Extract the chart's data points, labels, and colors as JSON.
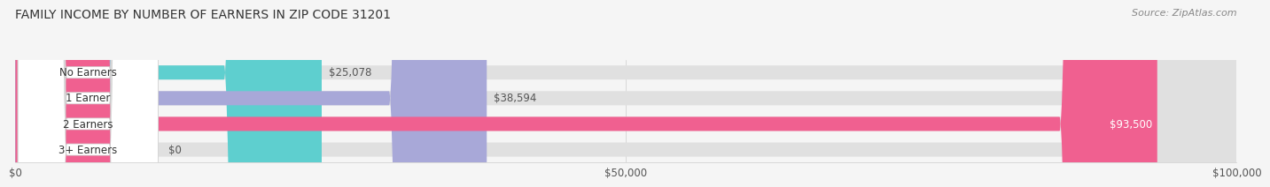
{
  "title": "FAMILY INCOME BY NUMBER OF EARNERS IN ZIP CODE 31201",
  "source": "Source: ZipAtlas.com",
  "categories": [
    "No Earners",
    "1 Earner",
    "2 Earners",
    "3+ Earners"
  ],
  "values": [
    25078,
    38594,
    93500,
    0
  ],
  "bar_colors": [
    "#5ecfcf",
    "#a8a8d8",
    "#f06090",
    "#f5c898"
  ],
  "label_texts": [
    "$25,078",
    "$38,594",
    "$93,500",
    "$0"
  ],
  "xmax": 100000,
  "xticks": [
    0,
    50000,
    100000
  ],
  "xticklabels": [
    "$0",
    "$50,000",
    "$100,000"
  ],
  "background_color": "#f5f5f5",
  "bar_bg": "#e0e0e0",
  "title_fontsize": 10,
  "source_fontsize": 8,
  "label_fontsize": 8.5,
  "category_fontsize": 8.5
}
